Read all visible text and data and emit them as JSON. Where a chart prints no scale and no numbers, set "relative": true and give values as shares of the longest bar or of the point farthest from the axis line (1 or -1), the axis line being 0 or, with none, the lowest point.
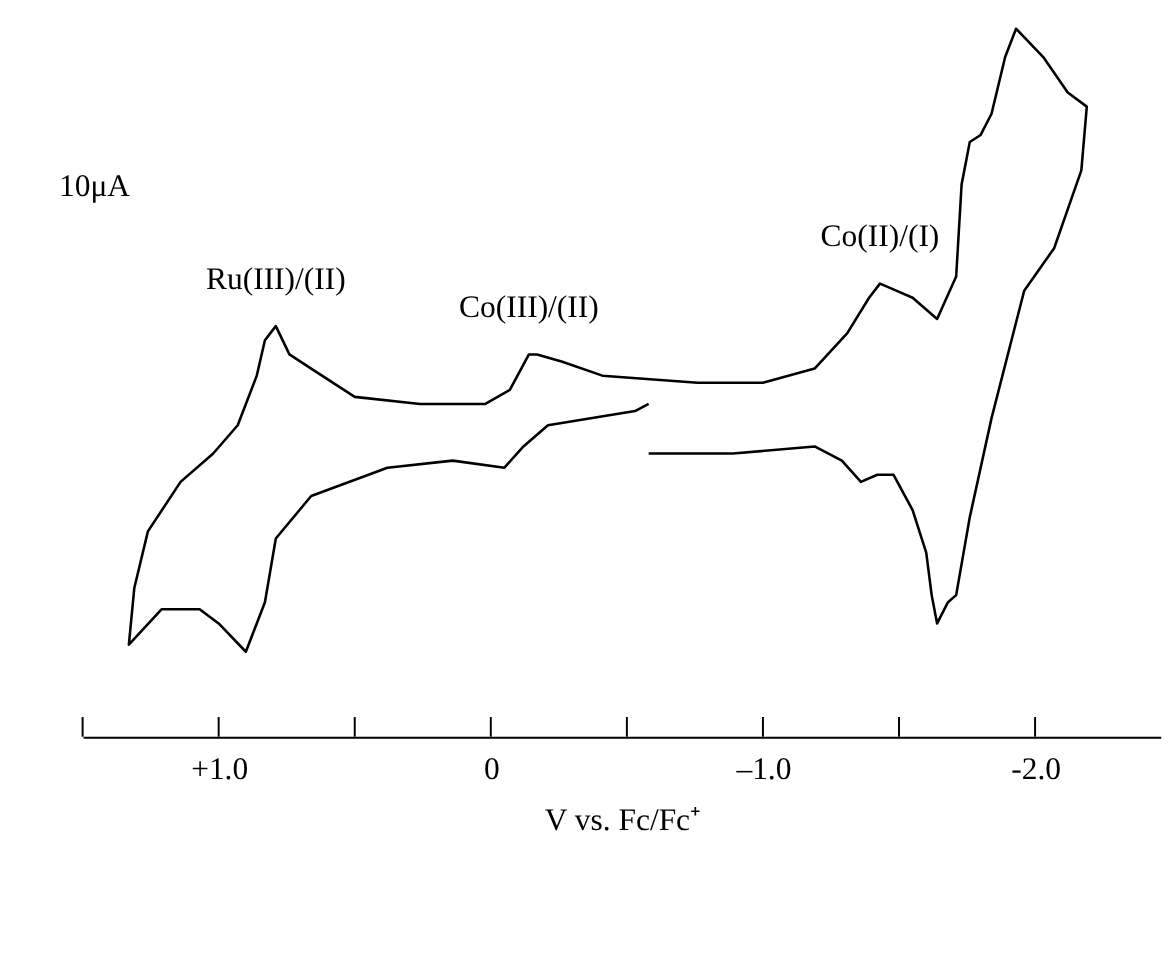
{
  "chart_data": {
    "type": "line",
    "relative": true,
    "xlabel": "V vs. Fc/Fc⁺",
    "xlim": [
      1.5,
      -2.46
    ],
    "xticks": [
      {
        "value": 1.5,
        "label": null
      },
      {
        "value": 1.0,
        "label": "+1.0"
      },
      {
        "value": 0.5,
        "label": null
      },
      0,
      {
        "value": -0.5,
        "label": null
      },
      {
        "value": -1.0,
        "label": "–1.0"
      },
      {
        "value": -1.5,
        "label": null
      },
      {
        "value": -2.0,
        "label": "-2.0"
      }
    ],
    "tick_labels": "x",
    "grid": false,
    "marker": "none",
    "line_style": "solid",
    "series": [
      {
        "color": "#000000",
        "x": [
          -0.58,
          -0.89,
          -1.19,
          -1.29,
          -1.36,
          -1.42,
          -1.48,
          -1.55,
          -1.6,
          -1.62,
          -1.64,
          -1.68,
          -1.71,
          -1.76,
          -1.84,
          -1.96,
          -2.07,
          -2.17,
          -2.19,
          -2.12,
          -2.03,
          -1.93,
          -1.89,
          -1.84,
          -1.8,
          -1.76,
          -1.73,
          -1.71,
          -1.64,
          -1.55,
          -1.49,
          -1.43,
          -1.39,
          -1.31,
          -1.19,
          -1.0,
          -0.76,
          -0.41,
          -0.26,
          -0.17,
          -0.14,
          -0.07,
          0.02,
          0.26,
          0.5,
          0.66,
          0.74,
          0.79,
          0.83,
          0.86,
          0.93,
          1.02,
          1.14,
          1.26,
          1.31,
          1.33,
          1.21,
          1.07,
          1.0,
          0.9,
          0.83,
          0.79,
          0.66,
          0.38,
          0.14,
          -0.05,
          -0.12,
          -0.21,
          -0.53,
          -0.58
        ],
        "values": [
          0.4,
          0.4,
          0.41,
          0.39,
          0.36,
          0.37,
          0.37,
          0.32,
          0.26,
          0.2,
          0.16,
          0.19,
          0.2,
          0.31,
          0.45,
          0.63,
          0.69,
          0.8,
          0.89,
          0.91,
          0.96,
          1.0,
          0.96,
          0.88,
          0.85,
          0.84,
          0.78,
          0.65,
          0.59,
          0.62,
          0.63,
          0.64,
          0.62,
          0.57,
          0.52,
          0.5,
          0.5,
          0.51,
          0.53,
          0.54,
          0.54,
          0.49,
          0.47,
          0.47,
          0.48,
          0.52,
          0.54,
          0.58,
          0.56,
          0.51,
          0.44,
          0.4,
          0.36,
          0.29,
          0.21,
          0.13,
          0.18,
          0.18,
          0.16,
          0.12,
          0.19,
          0.28,
          0.34,
          0.38,
          0.39,
          0.38,
          0.41,
          0.44,
          0.46,
          0.47
        ]
      }
    ],
    "annotations": [
      "10μA",
      {
        "text": "Ru(III)/(II)",
        "x": 0.79,
        "y": 0.58
      },
      {
        "text": "Co(III)/(II)",
        "x": -0.14,
        "y": 0.54
      },
      {
        "text": "Co(II)/(I)",
        "x": -1.43,
        "y": 0.64
      }
    ]
  }
}
